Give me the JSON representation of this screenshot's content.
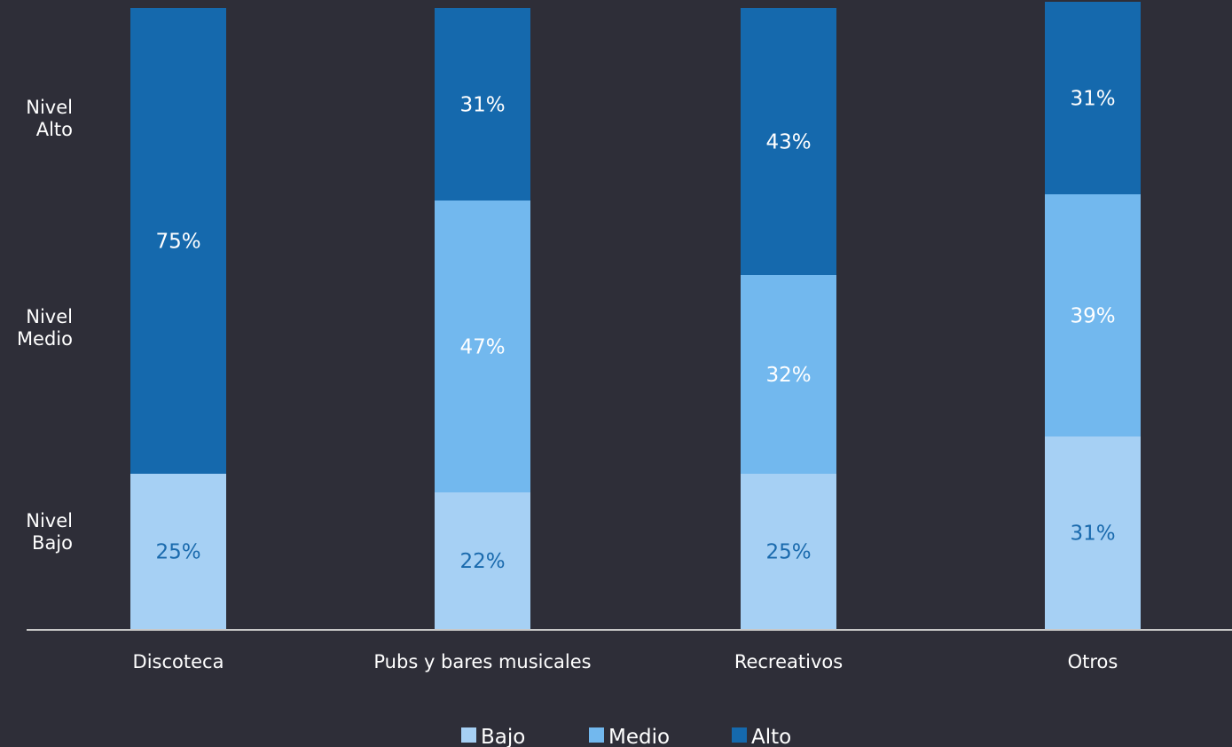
{
  "chart_data": {
    "type": "bar",
    "stacked": true,
    "percent": true,
    "categories": [
      "Discoteca",
      "Pubs y bares musicales",
      "Recreativos",
      "Otros"
    ],
    "series": [
      {
        "name": "Bajo",
        "values": [
          25,
          22,
          25,
          31
        ],
        "color": "#a6d0f4",
        "label_color": "#1a6aad"
      },
      {
        "name": "Medio",
        "values": [
          0,
          47,
          32,
          39
        ],
        "color": "#72b8ee",
        "label_color": "#ffffff"
      },
      {
        "name": "Alto",
        "values": [
          75,
          31,
          43,
          31
        ],
        "color": "#1569ad",
        "label_color": "#ffffff"
      }
    ],
    "data_labels": [
      [
        "25%",
        "22%",
        "25%",
        "31%"
      ],
      [
        "",
        "47%",
        "32%",
        "39%"
      ],
      [
        "75%",
        "31%",
        "43%",
        "31%"
      ]
    ],
    "ylim": [
      0,
      100
    ],
    "side_labels": [
      [
        "Nivel",
        "Alto"
      ],
      [
        "Nivel",
        "Medio"
      ],
      [
        "Nivel",
        "Bajo"
      ]
    ],
    "legend": {
      "position": "bottom",
      "entries": [
        "Bajo",
        "Medio",
        "Alto"
      ]
    },
    "grid": false,
    "title": "",
    "xlabel": "",
    "ylabel": ""
  },
  "colors": {
    "background": "#2e2e38",
    "axis": "#c8c8c8",
    "text": "#ffffff"
  }
}
